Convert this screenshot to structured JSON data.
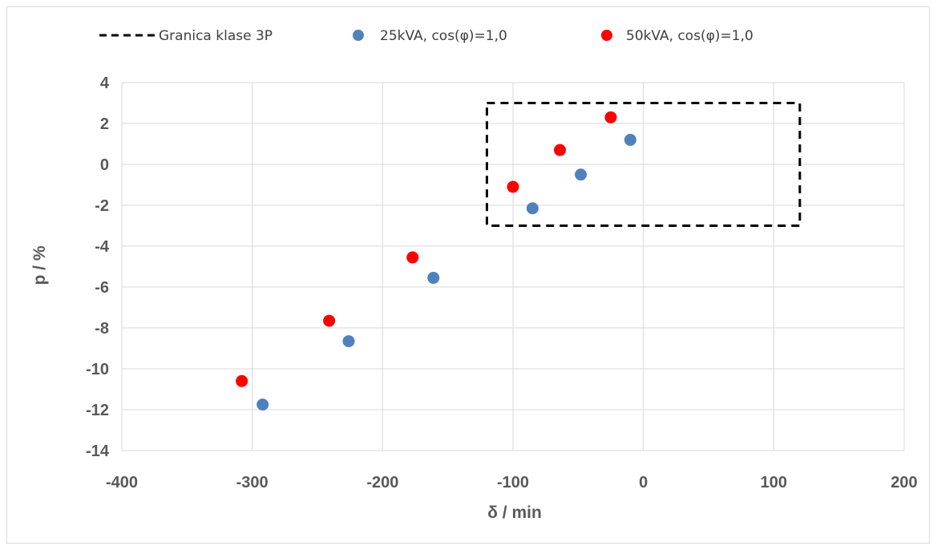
{
  "chart_data": {
    "type": "scatter",
    "xlabel": "δ / min",
    "ylabel": "p / %",
    "xlim": [
      -400,
      200
    ],
    "ylim": [
      -14,
      4
    ],
    "x_ticks": [
      -400,
      -300,
      -200,
      -100,
      0,
      100,
      200
    ],
    "y_ticks": [
      4,
      2,
      0,
      -2,
      -4,
      -6,
      -8,
      -10,
      -12,
      -14
    ],
    "grid": true,
    "legend_position": "top",
    "boundary": {
      "name": "Granica klase 3P",
      "style": "dashed",
      "color": "#000000",
      "x": [
        -120,
        120
      ],
      "y": [
        -3,
        3
      ]
    },
    "series": [
      {
        "name": "25kVA, cos(φ)=1,0",
        "color": "#4f81bd",
        "points": [
          [
            -292,
            -11.75
          ],
          [
            -226,
            -8.65
          ],
          [
            -161,
            -5.55
          ],
          [
            -85,
            -2.15
          ],
          [
            -48,
            -0.5
          ],
          [
            -10,
            1.2
          ]
        ]
      },
      {
        "name": "50kVA, cos(φ)=1,0",
        "color": "#ff0000",
        "points": [
          [
            -308,
            -10.6
          ],
          [
            -241,
            -7.65
          ],
          [
            -177,
            -4.55
          ],
          [
            -100,
            -1.1
          ],
          [
            -64,
            0.7
          ],
          [
            -25,
            2.3
          ]
        ]
      }
    ]
  }
}
